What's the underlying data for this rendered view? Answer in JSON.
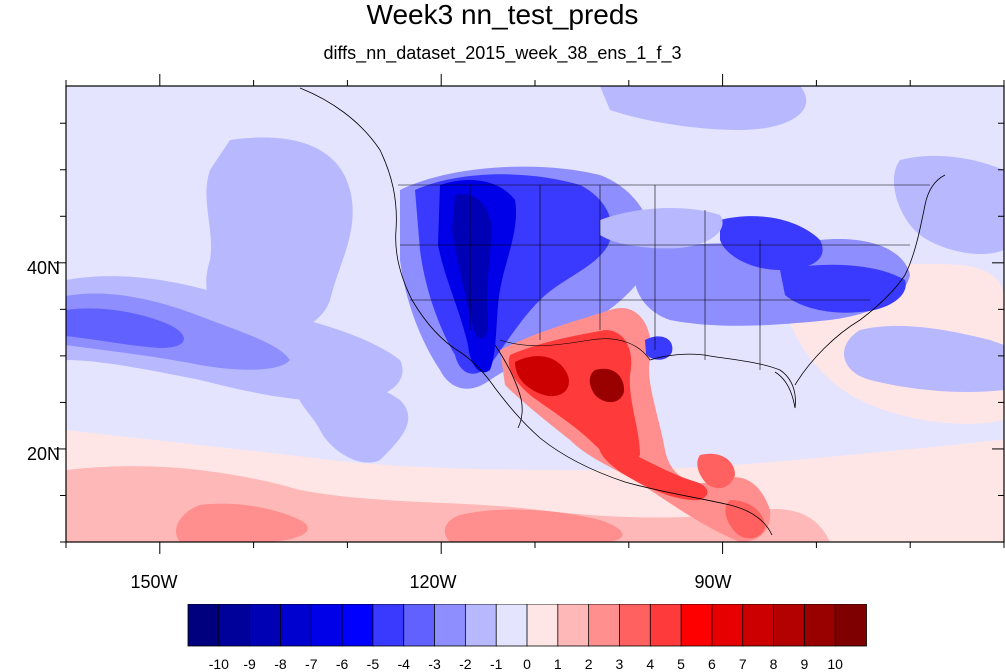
{
  "title": "Week3 nn_test_preds",
  "subtitle": "diffs_nn_dataset_2015_week_38_ens_1_f_3",
  "axes": {
    "lon_labels": [
      "150W",
      "120W",
      "90W"
    ],
    "lat_labels": [
      "40N",
      "20N"
    ],
    "lon_values": [
      -150,
      -120,
      -90
    ],
    "lat_values": [
      40,
      20
    ],
    "lon_range": [
      -160,
      -60
    ],
    "lat_range": [
      10,
      59
    ]
  },
  "colorbar": {
    "labels": [
      "-10",
      "-9",
      "-8",
      "-7",
      "-6",
      "-5",
      "-4",
      "-3",
      "-2",
      "-1",
      "0",
      "1",
      "2",
      "3",
      "4",
      "5",
      "6",
      "7",
      "8",
      "9",
      "10"
    ],
    "colors": [
      "#00007f",
      "#00009a",
      "#0000b4",
      "#0000cf",
      "#0000e8",
      "#0000ff",
      "#3a3aff",
      "#6161ff",
      "#8e8eff",
      "#b8b8ff",
      "#e4e4ff",
      "#ffe6e6",
      "#ffb8b8",
      "#ff8e8e",
      "#ff6161",
      "#ff3a3a",
      "#ff0000",
      "#e60000",
      "#cc0000",
      "#b30000",
      "#990000",
      "#7f0000"
    ]
  },
  "regions": [
    {
      "name": "pacific-background",
      "level": -1
    },
    {
      "name": "northeast-pacific-band",
      "level": -2
    },
    {
      "name": "subtropical-pacific-band",
      "level": -3
    },
    {
      "name": "tropical-positive-band",
      "level": 2
    },
    {
      "name": "western-us-negative",
      "level": -5
    },
    {
      "name": "western-us-core",
      "level": -8
    },
    {
      "name": "eastern-us-negative",
      "level": -4
    },
    {
      "name": "great-lakes-negative",
      "level": -5
    },
    {
      "name": "mexico-positive",
      "level": 5
    },
    {
      "name": "mexico-core",
      "level": 9
    },
    {
      "name": "central-america-positive",
      "level": 5
    },
    {
      "name": "atlantic-negative",
      "level": -2
    },
    {
      "name": "atlantic-positive",
      "level": 1
    }
  ]
}
